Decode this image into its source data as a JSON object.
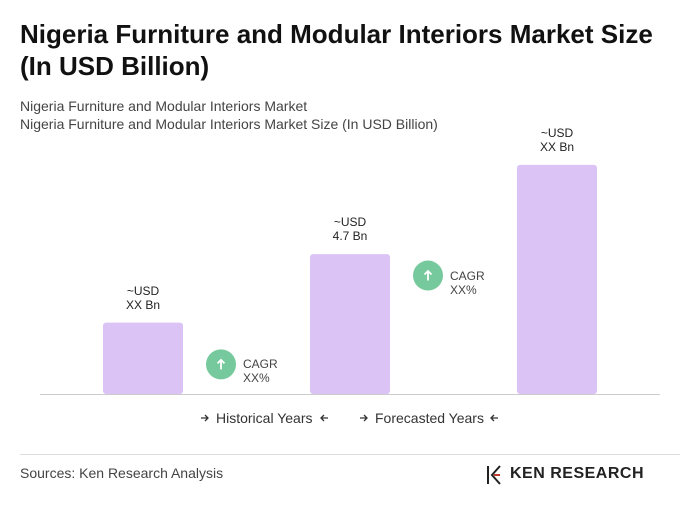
{
  "chart_data": {
    "type": "bar",
    "title": "Nigeria Furniture and Modular Interiors Market Size (In USD Billion)",
    "subtitle": [
      "Nigeria Furniture and Modular Interiors Market",
      "Nigeria Furniture and Modular Interiors Market Size (In USD Billion)"
    ],
    "categories": [
      null,
      null,
      null
    ],
    "values": [
      2.4,
      4.7,
      7.7
    ],
    "value_labels": [
      "~USD\nXX Bn",
      "~USD\n4.7 Bn",
      "~USD\nXX Bn"
    ],
    "color": "#dcc3f6",
    "ylim": [
      0,
      8
    ],
    "annotations": [
      "CAGR\nXX%",
      "CAGR\nXX%"
    ],
    "periods": [
      "Historical Years",
      "Forecasted Years"
    ],
    "source": "Sources: Ken Research Analysis",
    "logo": "KEN RESEARCH"
  }
}
